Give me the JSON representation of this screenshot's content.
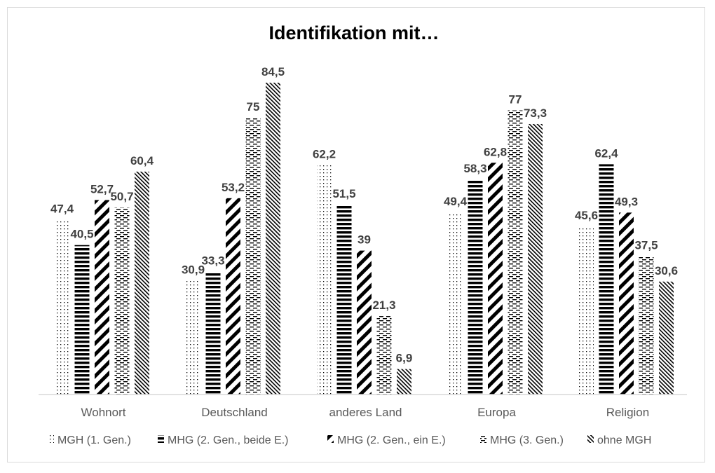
{
  "chart_data": {
    "type": "bar",
    "title": "Identifikation mit…",
    "categories": [
      "Wohnort",
      "Deutschland",
      "anderes Land",
      "Europa",
      "Religion"
    ],
    "series": [
      {
        "name": "MGH (1. Gen.)",
        "pattern": "dots",
        "values": [
          47.4,
          30.9,
          62.2,
          49.4,
          45.6
        ],
        "labels": [
          "47,4",
          "30,9",
          "62,2",
          "49,4",
          "45,6"
        ]
      },
      {
        "name": "MHG (2. Gen., beide E.)",
        "pattern": "horizontal",
        "values": [
          40.5,
          33.3,
          51.5,
          58.3,
          62.4
        ],
        "labels": [
          "40,5",
          "33,3",
          "51,5",
          "58,3",
          "62,4"
        ]
      },
      {
        "name": "MHG (2. Gen., ein E.)",
        "pattern": "diagonal-wide",
        "values": [
          52.7,
          53.2,
          39,
          62.8,
          49.3
        ],
        "labels": [
          "52,7",
          "53,2",
          "39",
          "62,8",
          "49,3"
        ]
      },
      {
        "name": "MHG (3. Gen.)",
        "pattern": "dashes",
        "values": [
          50.7,
          75,
          21.3,
          77,
          37.5
        ],
        "labels": [
          "50,7",
          "75",
          "21,3",
          "77",
          "37,5"
        ]
      },
      {
        "name": "ohne MGH",
        "pattern": "diagonal-thin",
        "values": [
          60.4,
          84.5,
          6.9,
          73.3,
          30.6
        ],
        "labels": [
          "60,4",
          "84,5",
          "6,9",
          "73,3",
          "30,6"
        ]
      }
    ],
    "ylim": [
      0,
      84.5
    ],
    "legend": "bottom",
    "grid": false,
    "colors": {
      "bars": "#000000",
      "text": "#595959",
      "values": "#404040",
      "axis": "#d9d9d9"
    }
  }
}
